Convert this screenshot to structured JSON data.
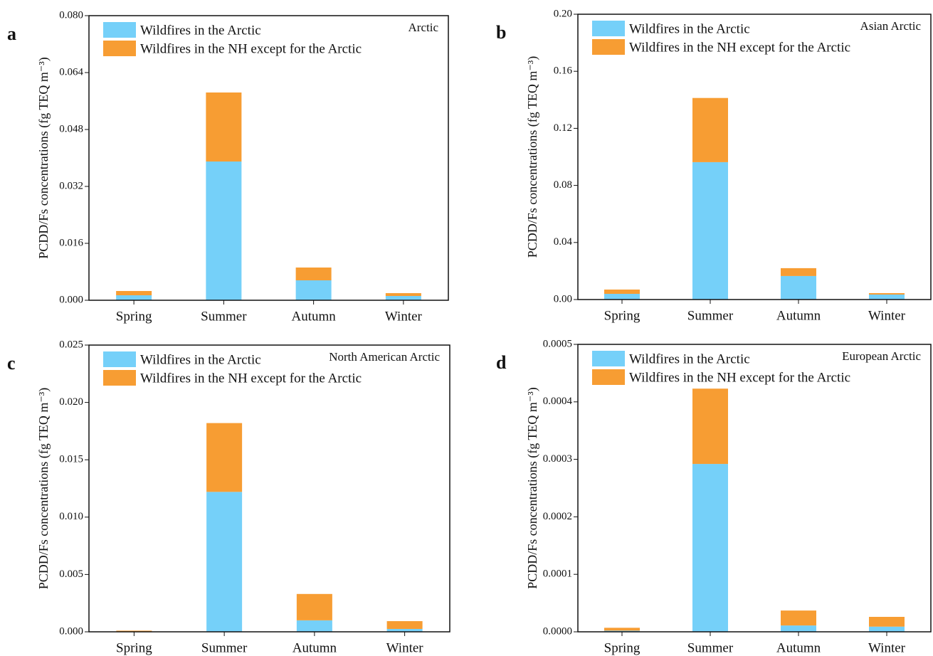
{
  "chart_data": [
    {
      "type": "bar",
      "panel_label": "a",
      "subtitle": "Arctic",
      "ylabel": "PCDD/Fs concentrations (fg TEQ m⁻³)",
      "categories": [
        "Spring",
        "Summer",
        "Autumn",
        "Winter"
      ],
      "series": [
        {
          "name": "Wildfires in the Arctic",
          "color": "#75d0f9",
          "values": [
            0.0014,
            0.039,
            0.0056,
            0.0012
          ]
        },
        {
          "name": "Wildfires in the NH except for the Arctic",
          "color": "#f79d33",
          "values": [
            0.0012,
            0.0194,
            0.0036,
            0.0008
          ]
        }
      ],
      "ylim": [
        0,
        0.08
      ],
      "yticks": [
        {
          "value": 0,
          "label": "0.000"
        },
        {
          "value": 0.016,
          "label": "0.016"
        },
        {
          "value": 0.032,
          "label": "0.032"
        },
        {
          "value": 0.048,
          "label": "0.048"
        },
        {
          "value": 0.064,
          "label": "0.064"
        },
        {
          "value": 0.08,
          "label": "0.080"
        }
      ]
    },
    {
      "type": "bar",
      "panel_label": "b",
      "subtitle": "Asian Arctic",
      "ylabel": "PCDD/Fs concentrations (fg TEQ m⁻³)",
      "categories": [
        "Spring",
        "Summer",
        "Autumn",
        "Winter"
      ],
      "series": [
        {
          "name": "Wildfires in the Arctic",
          "color": "#75d0f9",
          "values": [
            0.004,
            0.0963,
            0.0165,
            0.0035
          ]
        },
        {
          "name": "Wildfires in the NH except for the Arctic",
          "color": "#f79d33",
          "values": [
            0.003,
            0.045,
            0.0055,
            0.001
          ]
        }
      ],
      "ylim": [
        0,
        0.2
      ],
      "yticks": [
        {
          "value": 0,
          "label": "0.00"
        },
        {
          "value": 0.04,
          "label": "0.04"
        },
        {
          "value": 0.08,
          "label": "0.08"
        },
        {
          "value": 0.12,
          "label": "0.12"
        },
        {
          "value": 0.16,
          "label": "0.16"
        },
        {
          "value": 0.2,
          "label": "0.20"
        }
      ]
    },
    {
      "type": "bar",
      "panel_label": "c",
      "subtitle": "North American Arctic",
      "ylabel": "PCDD/Fs concentrations (fg TEQ m⁻³)",
      "categories": [
        "Spring",
        "Summer",
        "Autumn",
        "Winter"
      ],
      "series": [
        {
          "name": "Wildfires in the Arctic",
          "color": "#75d0f9",
          "values": [
            2e-05,
            0.0122,
            0.001,
            0.00025
          ]
        },
        {
          "name": "Wildfires in the NH except for the Arctic",
          "color": "#f79d33",
          "values": [
            8e-05,
            0.006,
            0.0023,
            0.00068
          ]
        }
      ],
      "ylim": [
        0,
        0.025
      ],
      "yticks": [
        {
          "value": 0,
          "label": "0.000"
        },
        {
          "value": 0.005,
          "label": "0.005"
        },
        {
          "value": 0.01,
          "label": "0.010"
        },
        {
          "value": 0.015,
          "label": "0.015"
        },
        {
          "value": 0.02,
          "label": "0.020"
        },
        {
          "value": 0.025,
          "label": "0.025"
        }
      ]
    },
    {
      "type": "bar",
      "panel_label": "d",
      "subtitle": "European Arctic",
      "ylabel": "PCDD/Fs concentrations (fg TEQ m⁻³)",
      "categories": [
        "Spring",
        "Summer",
        "Autumn",
        "Winter"
      ],
      "series": [
        {
          "name": "Wildfires in the Arctic",
          "color": "#75d0f9",
          "values": [
            2e-06,
            0.000292,
            1.1e-05,
            9e-06
          ]
        },
        {
          "name": "Wildfires in the NH except for the Arctic",
          "color": "#f79d33",
          "values": [
            5e-06,
            0.000131,
            2.6e-05,
            1.7e-05
          ]
        }
      ],
      "ylim": [
        0,
        0.0005
      ],
      "yticks": [
        {
          "value": 0,
          "label": "0.0000"
        },
        {
          "value": 0.0001,
          "label": "0.0001"
        },
        {
          "value": 0.0002,
          "label": "0.0002"
        },
        {
          "value": 0.0003,
          "label": "0.0003"
        },
        {
          "value": 0.0004,
          "label": "0.0004"
        },
        {
          "value": 0.0005,
          "label": "0.0005"
        }
      ]
    }
  ]
}
